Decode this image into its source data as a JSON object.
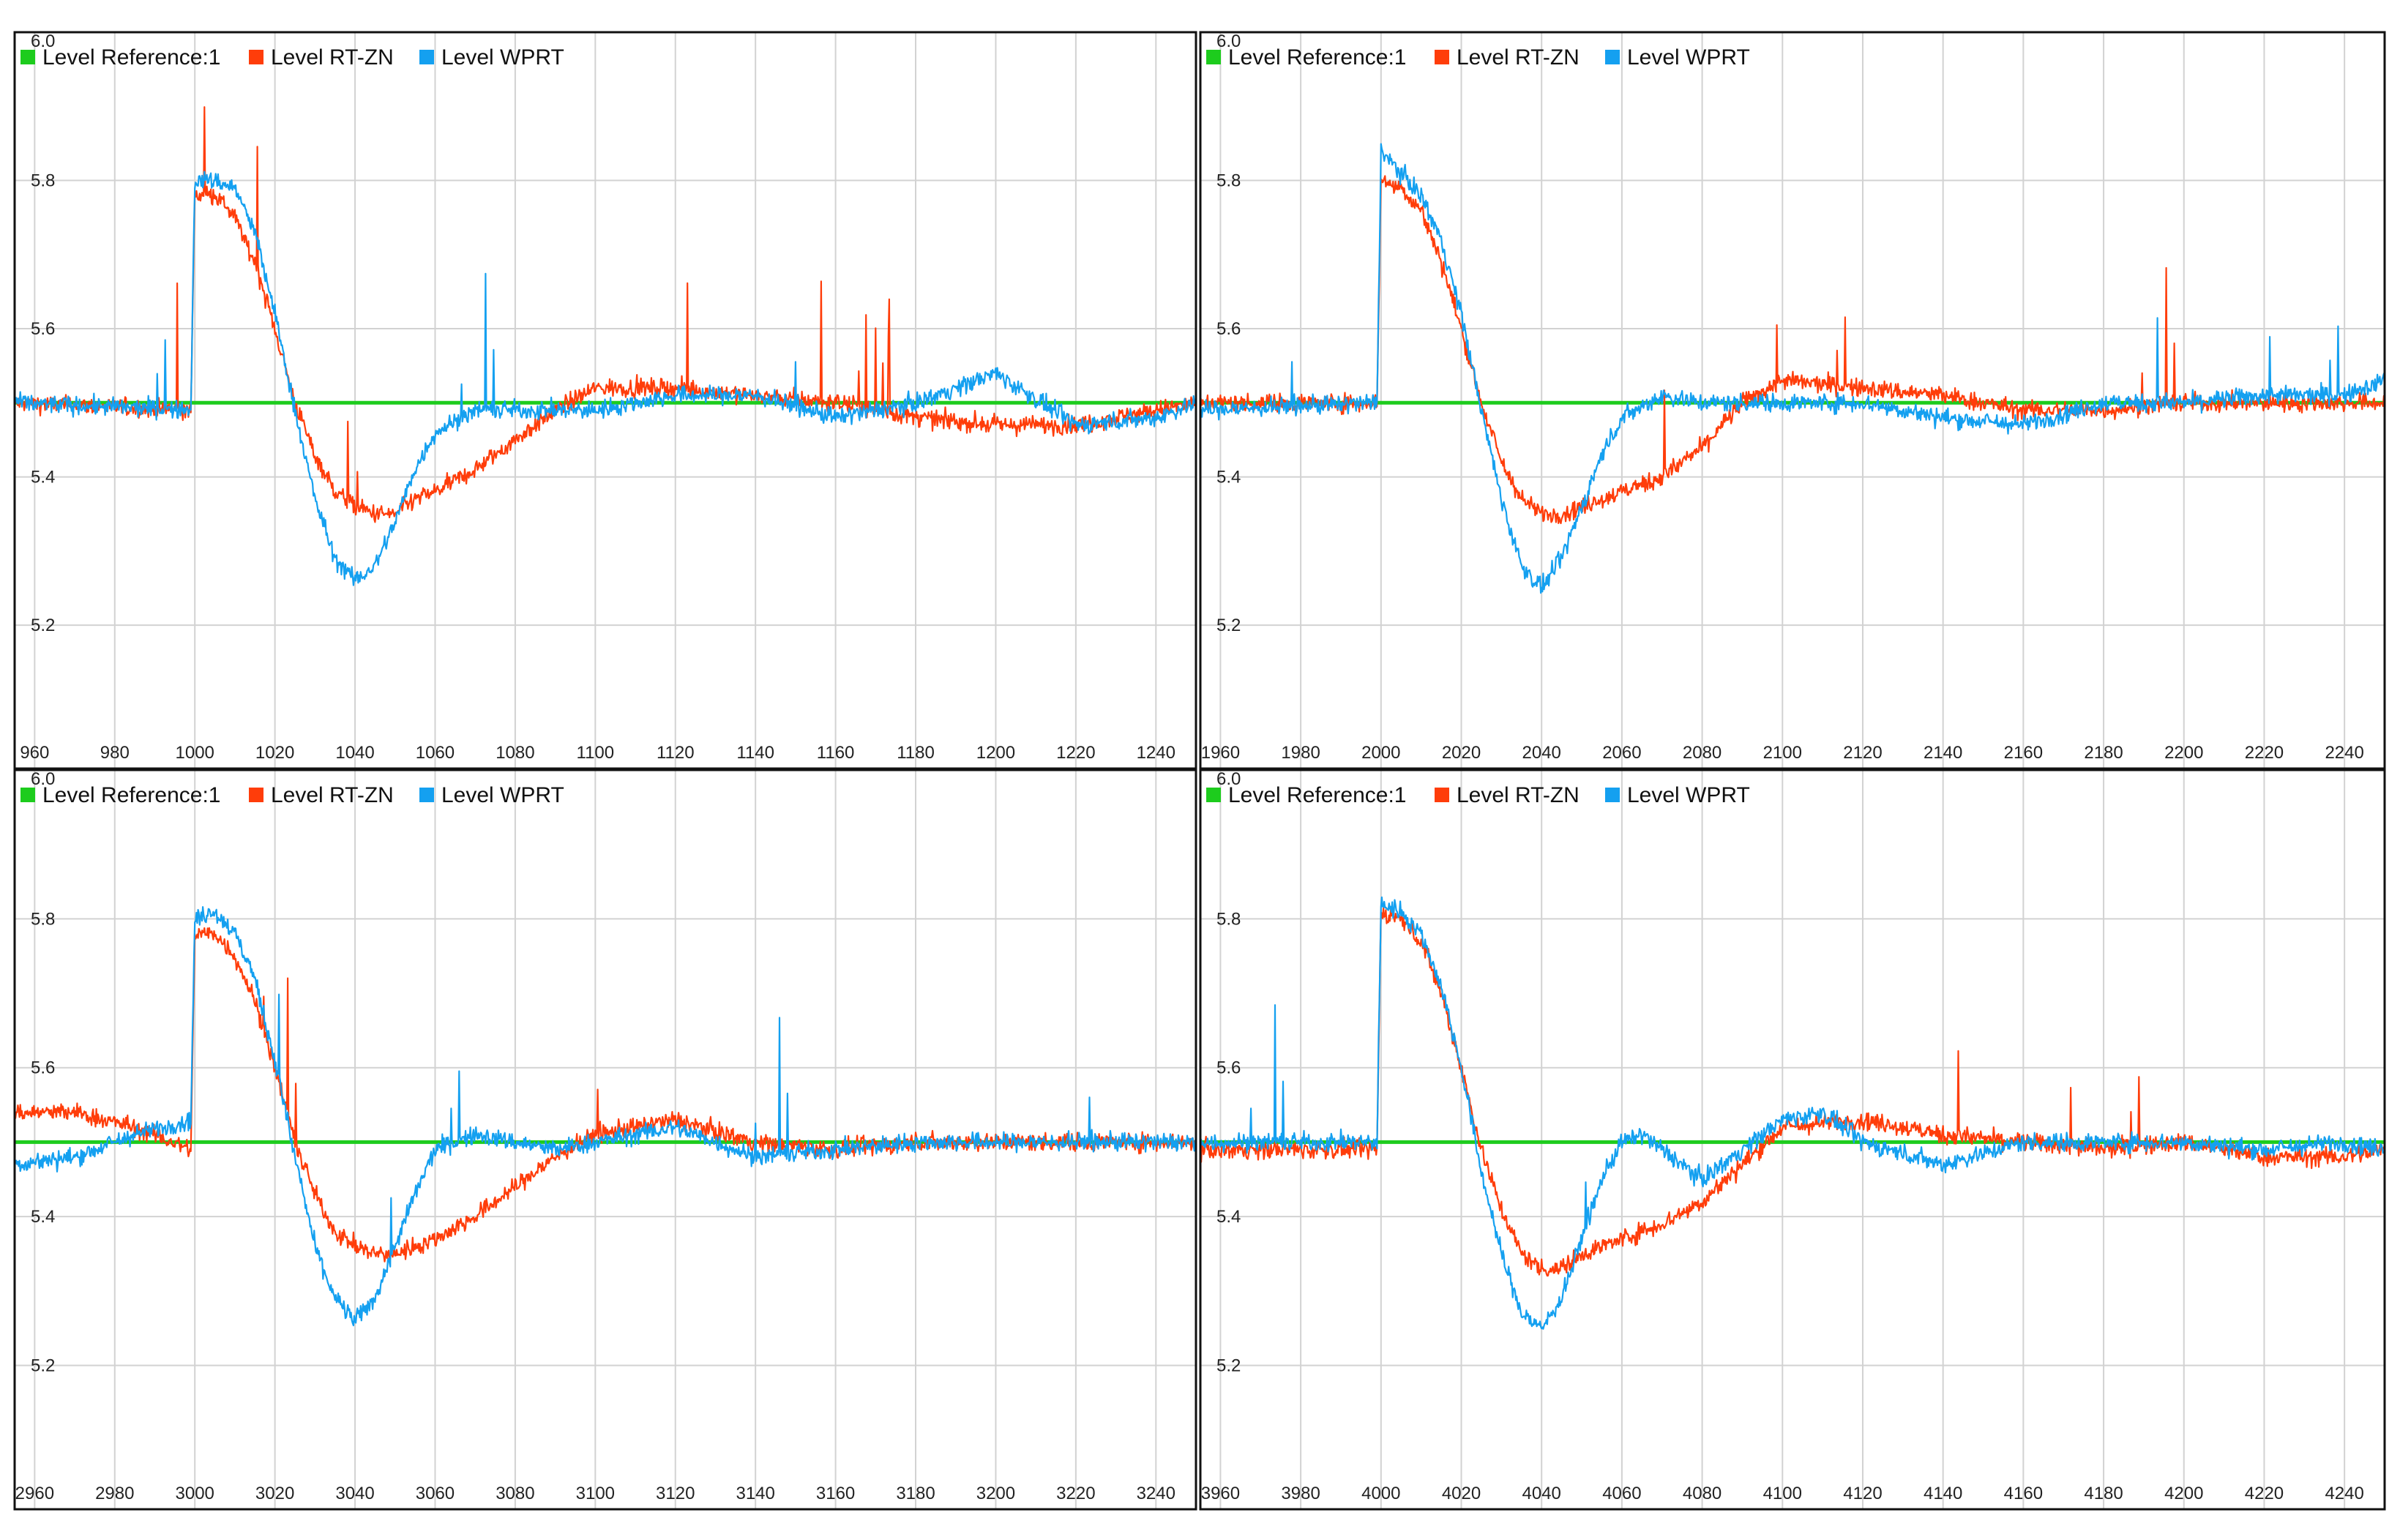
{
  "colors": {
    "reference": "#1dcc1d",
    "rtzn": "#ff3d0a",
    "wprt": "#14a0f0",
    "grid": "#d2d2d2",
    "border": "#111111"
  },
  "chart_data": [
    {
      "type": "line",
      "step_at": 1000,
      "xlim": [
        955,
        1250
      ],
      "ylim": [
        5.05,
        6.0
      ],
      "xticks": [
        "960",
        "980",
        "1000",
        "1020",
        "1040",
        "1060",
        "1080",
        "1100",
        "1120",
        "1140",
        "1160",
        "1180",
        "1200",
        "1220",
        "1240"
      ],
      "yticks": [
        "6.0",
        "5.8",
        "5.6",
        "5.4",
        "5.2"
      ],
      "legend": [
        "Level Reference:1",
        "Level RT-ZN",
        "Level WPRT"
      ],
      "series": [
        {
          "name": "Level Reference:1",
          "x": [
            955,
            1250
          ],
          "y": [
            5.5,
            5.5
          ]
        },
        {
          "name": "Level RT-ZN",
          "x": [
            955,
            999,
            1000,
            1005,
            1010,
            1015,
            1020,
            1025,
            1030,
            1035,
            1040,
            1045,
            1050,
            1055,
            1060,
            1070,
            1080,
            1090,
            1100,
            1120,
            1140,
            1160,
            1180,
            1200,
            1220,
            1240,
            1250
          ],
          "y": [
            5.5,
            5.49,
            5.78,
            5.78,
            5.75,
            5.69,
            5.6,
            5.5,
            5.43,
            5.38,
            5.36,
            5.35,
            5.35,
            5.37,
            5.38,
            5.41,
            5.45,
            5.49,
            5.52,
            5.52,
            5.51,
            5.5,
            5.48,
            5.47,
            5.47,
            5.49,
            5.5
          ]
        },
        {
          "name": "Level WPRT",
          "x": [
            955,
            999,
            1000,
            1005,
            1010,
            1015,
            1020,
            1025,
            1030,
            1035,
            1040,
            1045,
            1050,
            1055,
            1060,
            1070,
            1080,
            1090,
            1100,
            1120,
            1140,
            1160,
            1180,
            1200,
            1220,
            1240,
            1250
          ],
          "y": [
            5.5,
            5.49,
            5.8,
            5.8,
            5.79,
            5.73,
            5.62,
            5.49,
            5.37,
            5.29,
            5.26,
            5.28,
            5.34,
            5.41,
            5.46,
            5.49,
            5.49,
            5.49,
            5.49,
            5.51,
            5.51,
            5.48,
            5.5,
            5.54,
            5.47,
            5.48,
            5.5
          ]
        }
      ]
    },
    {
      "type": "line",
      "step_at": 2000,
      "xlim": [
        1955,
        2250
      ],
      "ylim": [
        5.05,
        6.0
      ],
      "xticks": [
        "1960",
        "1980",
        "2000",
        "2020",
        "2040",
        "2060",
        "2080",
        "2100",
        "2120",
        "2140",
        "2160",
        "2180",
        "2200",
        "2220",
        "2240"
      ],
      "yticks": [
        "6.0",
        "5.8",
        "5.6",
        "5.4",
        "5.2"
      ],
      "legend": [
        "Level Reference:1",
        "Level RT-ZN",
        "Level WPRT"
      ],
      "series": [
        {
          "name": "Level Reference:1",
          "x": [
            1955,
            2250
          ],
          "y": [
            5.5,
            5.5
          ]
        },
        {
          "name": "Level RT-ZN",
          "x": [
            1955,
            1999,
            2000,
            2005,
            2010,
            2015,
            2020,
            2025,
            2030,
            2035,
            2040,
            2045,
            2050,
            2055,
            2060,
            2070,
            2080,
            2090,
            2100,
            2120,
            2140,
            2160,
            2180,
            2200,
            2220,
            2240,
            2250
          ],
          "y": [
            5.5,
            5.5,
            5.8,
            5.79,
            5.76,
            5.69,
            5.6,
            5.5,
            5.42,
            5.37,
            5.35,
            5.35,
            5.36,
            5.37,
            5.38,
            5.4,
            5.44,
            5.5,
            5.53,
            5.52,
            5.51,
            5.49,
            5.49,
            5.5,
            5.5,
            5.5,
            5.5
          ]
        },
        {
          "name": "Level WPRT",
          "x": [
            1955,
            1999,
            2000,
            2005,
            2010,
            2015,
            2020,
            2025,
            2030,
            2035,
            2040,
            2045,
            2050,
            2055,
            2060,
            2070,
            2080,
            2090,
            2100,
            2120,
            2140,
            2160,
            2180,
            2200,
            2220,
            2240,
            2250
          ],
          "y": [
            5.49,
            5.5,
            5.84,
            5.81,
            5.78,
            5.72,
            5.62,
            5.49,
            5.37,
            5.28,
            5.25,
            5.29,
            5.36,
            5.43,
            5.48,
            5.51,
            5.5,
            5.5,
            5.5,
            5.5,
            5.48,
            5.47,
            5.5,
            5.5,
            5.51,
            5.51,
            5.53
          ]
        }
      ]
    },
    {
      "type": "line",
      "step_at": 3000,
      "xlim": [
        2955,
        3250
      ],
      "ylim": [
        5.05,
        6.0
      ],
      "xticks": [
        "2960",
        "2980",
        "3000",
        "3020",
        "3040",
        "3060",
        "3080",
        "3100",
        "3120",
        "3140",
        "3160",
        "3180",
        "3200",
        "3220",
        "3240"
      ],
      "yticks": [
        "6.0",
        "5.8",
        "5.6",
        "5.4",
        "5.2"
      ],
      "legend": [
        "Level Reference:1",
        "Level RT-ZN",
        "Level WPRT"
      ],
      "series": [
        {
          "name": "Level Reference:1",
          "x": [
            2955,
            3250
          ],
          "y": [
            5.5,
            5.5
          ]
        },
        {
          "name": "Level RT-ZN",
          "x": [
            2955,
            2970,
            2985,
            2999,
            3000,
            3005,
            3010,
            3015,
            3020,
            3025,
            3030,
            3035,
            3040,
            3045,
            3050,
            3055,
            3060,
            3070,
            3080,
            3090,
            3100,
            3120,
            3140,
            3160,
            3180,
            3200,
            3220,
            3240,
            3250
          ],
          "y": [
            5.54,
            5.54,
            5.52,
            5.49,
            5.78,
            5.78,
            5.75,
            5.69,
            5.6,
            5.5,
            5.43,
            5.38,
            5.36,
            5.35,
            5.35,
            5.36,
            5.37,
            5.4,
            5.44,
            5.48,
            5.51,
            5.53,
            5.5,
            5.49,
            5.5,
            5.5,
            5.5,
            5.5,
            5.5
          ]
        },
        {
          "name": "Level WPRT",
          "x": [
            2955,
            2970,
            2985,
            2999,
            3000,
            3005,
            3010,
            3015,
            3020,
            3025,
            3030,
            3035,
            3040,
            3045,
            3050,
            3055,
            3060,
            3070,
            3080,
            3090,
            3100,
            3120,
            3140,
            3160,
            3180,
            3200,
            3220,
            3240,
            3250
          ],
          "y": [
            5.47,
            5.48,
            5.51,
            5.53,
            5.8,
            5.81,
            5.78,
            5.72,
            5.61,
            5.48,
            5.36,
            5.29,
            5.26,
            5.29,
            5.36,
            5.43,
            5.49,
            5.51,
            5.5,
            5.49,
            5.5,
            5.52,
            5.48,
            5.49,
            5.5,
            5.5,
            5.5,
            5.5,
            5.5
          ]
        }
      ]
    },
    {
      "type": "line",
      "step_at": 4000,
      "xlim": [
        3955,
        4250
      ],
      "ylim": [
        5.05,
        6.0
      ],
      "xticks": [
        "3960",
        "3980",
        "4000",
        "4020",
        "4040",
        "4060",
        "4080",
        "4100",
        "4120",
        "4140",
        "4160",
        "4180",
        "4200",
        "4220",
        "4240"
      ],
      "yticks": [
        "6.0",
        "5.8",
        "5.6",
        "5.4",
        "5.2"
      ],
      "legend": [
        "Level Reference:1",
        "Level RT-ZN",
        "Level WPRT"
      ],
      "series": [
        {
          "name": "Level Reference:1",
          "x": [
            3955,
            4250
          ],
          "y": [
            5.5,
            5.5
          ]
        },
        {
          "name": "Level RT-ZN",
          "x": [
            3955,
            3999,
            4000,
            4005,
            4010,
            4015,
            4020,
            4025,
            4030,
            4035,
            4040,
            4045,
            4050,
            4055,
            4060,
            4070,
            4080,
            4090,
            4100,
            4120,
            4140,
            4160,
            4180,
            4200,
            4220,
            4240,
            4250
          ],
          "y": [
            5.49,
            5.49,
            5.81,
            5.8,
            5.77,
            5.7,
            5.6,
            5.49,
            5.41,
            5.35,
            5.33,
            5.33,
            5.35,
            5.36,
            5.37,
            5.39,
            5.42,
            5.47,
            5.52,
            5.53,
            5.51,
            5.5,
            5.49,
            5.5,
            5.48,
            5.48,
            5.49
          ]
        },
        {
          "name": "Level WPRT",
          "x": [
            3955,
            3999,
            4000,
            4005,
            4010,
            4015,
            4020,
            4025,
            4030,
            4035,
            4040,
            4045,
            4050,
            4055,
            4060,
            4065,
            4070,
            4080,
            4090,
            4100,
            4110,
            4120,
            4140,
            4160,
            4180,
            4200,
            4220,
            4240,
            4250
          ],
          "y": [
            5.5,
            5.5,
            5.82,
            5.81,
            5.78,
            5.71,
            5.6,
            5.46,
            5.35,
            5.27,
            5.25,
            5.29,
            5.37,
            5.45,
            5.5,
            5.51,
            5.49,
            5.45,
            5.49,
            5.53,
            5.54,
            5.5,
            5.47,
            5.5,
            5.5,
            5.5,
            5.49,
            5.5,
            5.49
          ]
        }
      ]
    }
  ]
}
